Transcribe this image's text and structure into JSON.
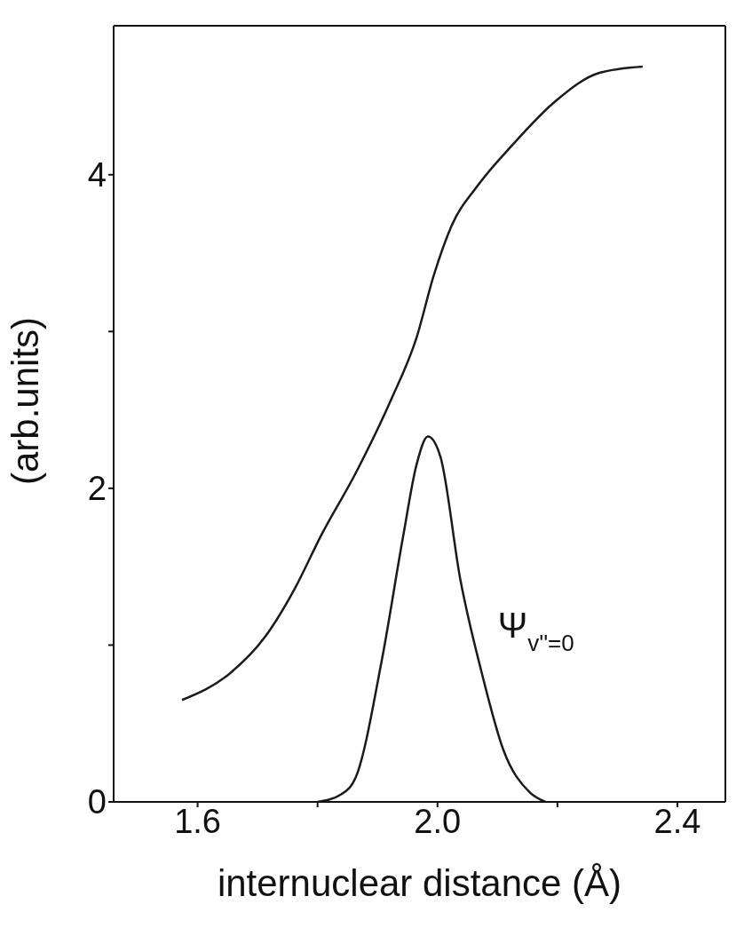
{
  "chart_data": {
    "type": "line",
    "xlabel": "internuclear distance  (Å)",
    "ylabel": "(arb.units)",
    "xlim": [
      1.46,
      2.48
    ],
    "xticks": [
      1.6,
      {
        "value": 1.8,
        "label": null
      },
      {
        "value": 2.0,
        "label": "2.0"
      },
      {
        "value": 2.2,
        "label": null
      },
      2.4
    ],
    "ylim": [
      0,
      4.95
    ],
    "yticks": [
      0,
      {
        "value": 1,
        "label": null
      },
      2,
      {
        "value": 3,
        "label": null
      },
      4
    ],
    "legend": false,
    "marker": "none",
    "line_style": "solid",
    "series": [
      {
        "color": "#1a1a1a",
        "x": [
          1.574,
          1.654,
          1.712,
          1.762,
          1.806,
          1.864,
          1.922,
          1.965,
          1.994,
          2.023,
          2.067,
          2.125,
          2.197,
          2.27,
          2.342
        ],
        "values": [
          0.65,
          0.82,
          1.05,
          1.36,
          1.7,
          2.1,
          2.56,
          2.96,
          3.36,
          3.67,
          3.93,
          4.19,
          4.47,
          4.65,
          4.69
        ]
      },
      {
        "name": "Ψ$_{v''=0}$",
        "color": "#1a1a1a",
        "x": [
          1.8,
          1.84,
          1.864,
          1.907,
          1.943,
          1.965,
          1.984,
          2.005,
          2.038,
          2.074,
          2.11,
          2.154,
          2.18
        ],
        "values": [
          0,
          0.05,
          0.16,
          0.9,
          1.7,
          2.15,
          2.33,
          2.2,
          1.42,
          0.82,
          0.33,
          0.06,
          0
        ]
      }
    ]
  }
}
